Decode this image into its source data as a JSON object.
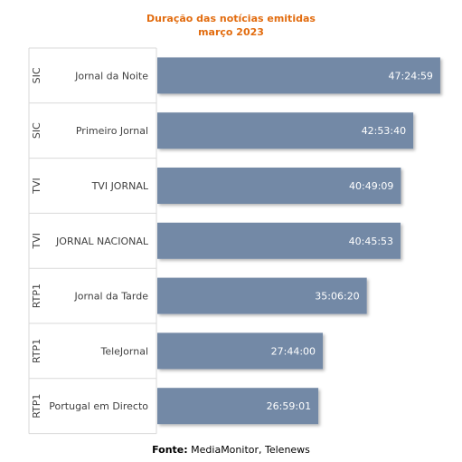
{
  "chart_data": {
    "type": "bar",
    "orientation": "horizontal",
    "title": "Duração das notícias emitidas",
    "subtitle": "março 2023",
    "bar_color": "#7389a6",
    "grid": false,
    "x_unit": "seconds",
    "xlim": [
      0,
      180000
    ],
    "groups": [
      "SIC",
      "SIC",
      "TVI",
      "TVI",
      "RTP1",
      "RTP1",
      "RTP1"
    ],
    "categories": [
      "Jornal da Noite",
      "Primeiro Jornal",
      "TVI JORNAL",
      "JORNAL NACIONAL",
      "Jornal da Tarde",
      "TeleJornal",
      "Portugal em Directo"
    ],
    "labels": [
      "47:24:59",
      "42:53:40",
      "40:49:09",
      "40:45:53",
      "35:06:20",
      "27:44:00",
      "26:59:01"
    ],
    "values": [
      170699,
      154420,
      146949,
      146753,
      126380,
      99840,
      97141
    ]
  },
  "source": {
    "label": "Fonte:",
    "text": " MediaMonitor, Telenews"
  }
}
